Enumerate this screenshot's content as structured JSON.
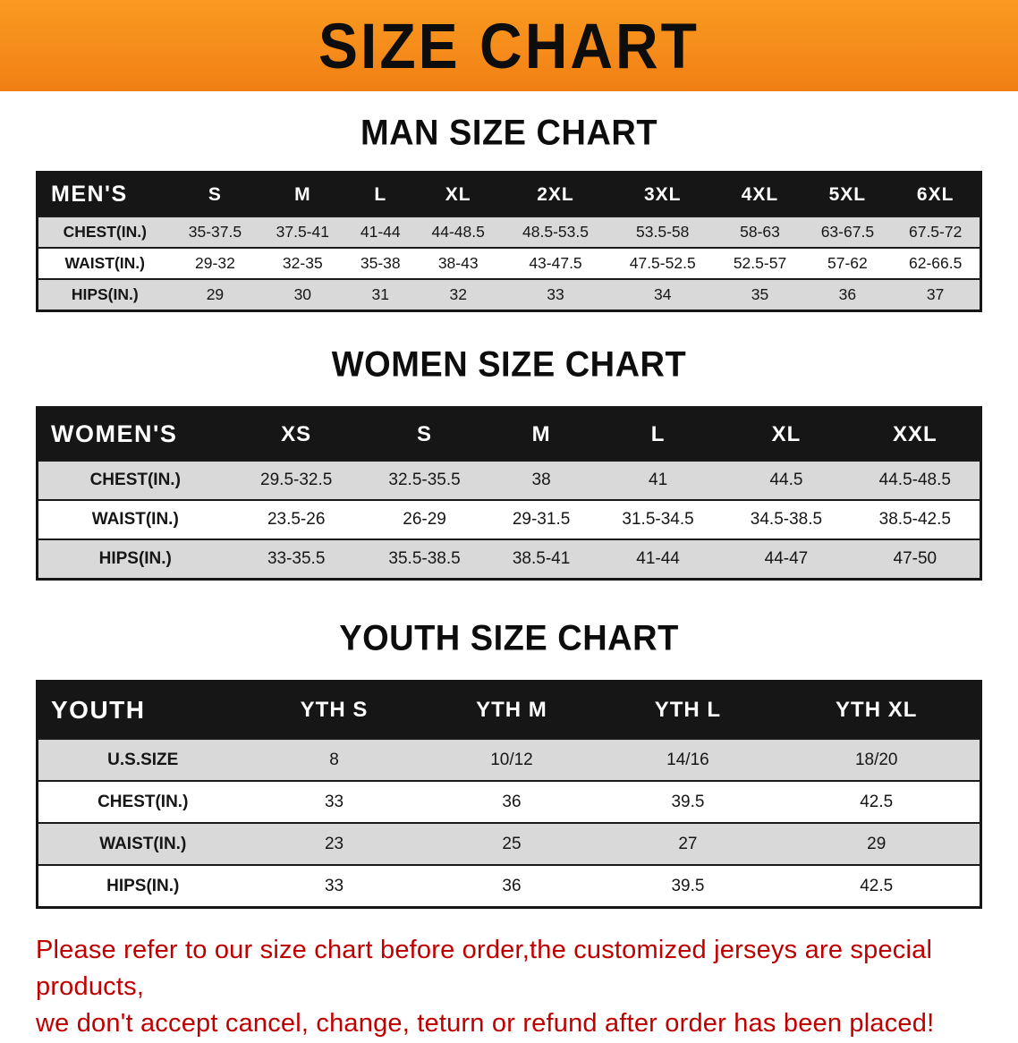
{
  "banner": {
    "title": "SIZE CHART",
    "bg_color": "#F68C1B",
    "text_color": "#0D0D0D"
  },
  "chart_data": [
    {
      "type": "table",
      "title": "MAN SIZE CHART",
      "corner_label": "MEN'S",
      "columns": [
        "S",
        "M",
        "L",
        "XL",
        "2XL",
        "3XL",
        "4XL",
        "5XL",
        "6XL"
      ],
      "rows": [
        {
          "label": "CHEST(IN.)",
          "values": [
            "35-37.5",
            "37.5-41",
            "41-44",
            "44-48.5",
            "48.5-53.5",
            "53.5-58",
            "58-63",
            "63-67.5",
            "67.5-72"
          ]
        },
        {
          "label": "WAIST(IN.)",
          "values": [
            "29-32",
            "32-35",
            "35-38",
            "38-43",
            "43-47.5",
            "47.5-52.5",
            "52.5-57",
            "57-62",
            "62-66.5"
          ]
        },
        {
          "label": "HIPS(IN.)",
          "values": [
            "29",
            "30",
            "31",
            "32",
            "33",
            "34",
            "35",
            "36",
            "37"
          ]
        }
      ],
      "header_bg": "#161616",
      "header_text_color": "#FFFFFF",
      "alt_row_bg": "#D9D9D9"
    },
    {
      "type": "table",
      "title": "WOMEN SIZE CHART",
      "corner_label": "WOMEN'S",
      "columns": [
        "XS",
        "S",
        "M",
        "L",
        "XL",
        "XXL"
      ],
      "rows": [
        {
          "label": "CHEST(IN.)",
          "values": [
            "29.5-32.5",
            "32.5-35.5",
            "38",
            "41",
            "44.5",
            "44.5-48.5"
          ]
        },
        {
          "label": "WAIST(IN.)",
          "values": [
            "23.5-26",
            "26-29",
            "29-31.5",
            "31.5-34.5",
            "34.5-38.5",
            "38.5-42.5"
          ]
        },
        {
          "label": "HIPS(IN.)",
          "values": [
            "33-35.5",
            "35.5-38.5",
            "38.5-41",
            "41-44",
            "44-47",
            "47-50"
          ]
        }
      ],
      "header_bg": "#161616",
      "header_text_color": "#FFFFFF",
      "alt_row_bg": "#D9D9D9"
    },
    {
      "type": "table",
      "title": "YOUTH SIZE CHART",
      "corner_label": "YOUTH",
      "columns": [
        "YTH S",
        "YTH M",
        "YTH L",
        "YTH XL"
      ],
      "rows": [
        {
          "label": "U.S.SIZE",
          "values": [
            "8",
            "10/12",
            "14/16",
            "18/20"
          ]
        },
        {
          "label": "CHEST(IN.)",
          "values": [
            "33",
            "36",
            "39.5",
            "42.5"
          ]
        },
        {
          "label": "WAIST(IN.)",
          "values": [
            "23",
            "25",
            "27",
            "29"
          ]
        },
        {
          "label": "HIPS(IN.)",
          "values": [
            "33",
            "36",
            "39.5",
            "42.5"
          ]
        }
      ],
      "header_bg": "#161616",
      "header_text_color": "#FFFFFF",
      "alt_row_bg": "#D9D9D9"
    }
  ],
  "footer": {
    "line1": "Please refer to our size chart before order,the customized jerseys are special products,",
    "line2": "we don't accept cancel, change, teturn or refund after order has been placed!",
    "text_color": "#C00000"
  }
}
